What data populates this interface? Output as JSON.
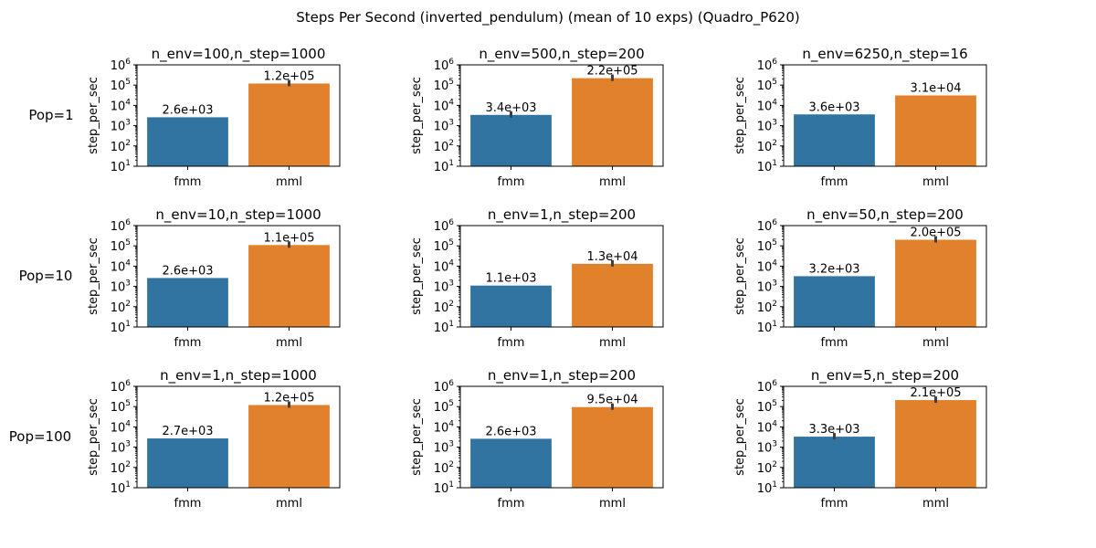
{
  "title": "Steps Per Second (inverted_pendulum) (mean of 10 exps) (Quadro_P620)",
  "colors": {
    "fmm": "#3274a1",
    "mml": "#e1812c",
    "errorbar": "#3f3f3f"
  },
  "row_labels": [
    "Pop=1",
    "Pop=10",
    "Pop=100"
  ],
  "chart_data": [
    {
      "type": "bar",
      "title": "n_env=100,n_step=1000",
      "row": "Pop=1",
      "categories": [
        "fmm",
        "mml"
      ],
      "values": [
        2600,
        120000
      ],
      "data_labels": [
        "2.6e+03",
        "1.2e+05"
      ],
      "error_bars": [
        false,
        true
      ],
      "ylabel": "step_per_sec",
      "yscale": "log",
      "ylim": [
        10,
        1000000
      ],
      "yticks": [
        "10^1",
        "10^2",
        "10^3",
        "10^4",
        "10^5",
        "10^6"
      ]
    },
    {
      "type": "bar",
      "title": "n_env=500,n_step=200",
      "row": "Pop=1",
      "categories": [
        "fmm",
        "mml"
      ],
      "values": [
        3400,
        220000
      ],
      "data_labels": [
        "3.4e+03",
        "2.2e+05"
      ],
      "error_bars": [
        true,
        true
      ],
      "ylabel": "step_per_sec",
      "yscale": "log",
      "ylim": [
        10,
        1000000
      ],
      "yticks": [
        "10^1",
        "10^2",
        "10^3",
        "10^4",
        "10^5",
        "10^6"
      ]
    },
    {
      "type": "bar",
      "title": "n_env=6250,n_step=16",
      "row": "Pop=1",
      "categories": [
        "fmm",
        "mml"
      ],
      "values": [
        3600,
        31000
      ],
      "data_labels": [
        "3.6e+03",
        "3.1e+04"
      ],
      "error_bars": [
        false,
        false
      ],
      "ylabel": "step_per_sec",
      "yscale": "log",
      "ylim": [
        10,
        1000000
      ],
      "yticks": [
        "10^1",
        "10^2",
        "10^3",
        "10^4",
        "10^5",
        "10^6"
      ]
    },
    {
      "type": "bar",
      "title": "n_env=10,n_step=1000",
      "row": "Pop=10",
      "categories": [
        "fmm",
        "mml"
      ],
      "values": [
        2600,
        110000
      ],
      "data_labels": [
        "2.6e+03",
        "1.1e+05"
      ],
      "error_bars": [
        false,
        true
      ],
      "ylabel": "step_per_sec",
      "yscale": "log",
      "ylim": [
        10,
        1000000
      ],
      "yticks": [
        "10^1",
        "10^2",
        "10^3",
        "10^4",
        "10^5",
        "10^6"
      ]
    },
    {
      "type": "bar",
      "title": "n_env=1,n_step=200",
      "row": "Pop=10",
      "categories": [
        "fmm",
        "mml"
      ],
      "values": [
        1100,
        13000
      ],
      "data_labels": [
        "1.1e+03",
        "1.3e+04"
      ],
      "error_bars": [
        false,
        true
      ],
      "ylabel": "step_per_sec",
      "yscale": "log",
      "ylim": [
        10,
        1000000
      ],
      "yticks": [
        "10^1",
        "10^2",
        "10^3",
        "10^4",
        "10^5",
        "10^6"
      ]
    },
    {
      "type": "bar",
      "title": "n_env=50,n_step=200",
      "row": "Pop=10",
      "categories": [
        "fmm",
        "mml"
      ],
      "values": [
        3200,
        200000
      ],
      "data_labels": [
        "3.2e+03",
        "2.0e+05"
      ],
      "error_bars": [
        false,
        true
      ],
      "ylabel": "step_per_sec",
      "yscale": "log",
      "ylim": [
        10,
        1000000
      ],
      "yticks": [
        "10^1",
        "10^2",
        "10^3",
        "10^4",
        "10^5",
        "10^6"
      ]
    },
    {
      "type": "bar",
      "title": "n_env=1,n_step=1000",
      "row": "Pop=100",
      "categories": [
        "fmm",
        "mml"
      ],
      "values": [
        2700,
        120000
      ],
      "data_labels": [
        "2.7e+03",
        "1.2e+05"
      ],
      "error_bars": [
        false,
        true
      ],
      "ylabel": "step_per_sec",
      "yscale": "log",
      "ylim": [
        10,
        1000000
      ],
      "yticks": [
        "10^1",
        "10^2",
        "10^3",
        "10^4",
        "10^5",
        "10^6"
      ]
    },
    {
      "type": "bar",
      "title": "n_env=1,n_step=200",
      "row": "Pop=100",
      "categories": [
        "fmm",
        "mml"
      ],
      "values": [
        2600,
        95000
      ],
      "data_labels": [
        "2.6e+03",
        "9.5e+04"
      ],
      "error_bars": [
        false,
        true
      ],
      "ylabel": "step_per_sec",
      "yscale": "log",
      "ylim": [
        10,
        1000000
      ],
      "yticks": [
        "10^1",
        "10^2",
        "10^3",
        "10^4",
        "10^5",
        "10^6"
      ]
    },
    {
      "type": "bar",
      "title": "n_env=5,n_step=200",
      "row": "Pop=100",
      "categories": [
        "fmm",
        "mml"
      ],
      "values": [
        3300,
        210000
      ],
      "data_labels": [
        "3.3e+03",
        "2.1e+05"
      ],
      "error_bars": [
        true,
        true
      ],
      "ylabel": "step_per_sec",
      "yscale": "log",
      "ylim": [
        10,
        1000000
      ],
      "yticks": [
        "10^1",
        "10^2",
        "10^3",
        "10^4",
        "10^5",
        "10^6"
      ]
    }
  ]
}
